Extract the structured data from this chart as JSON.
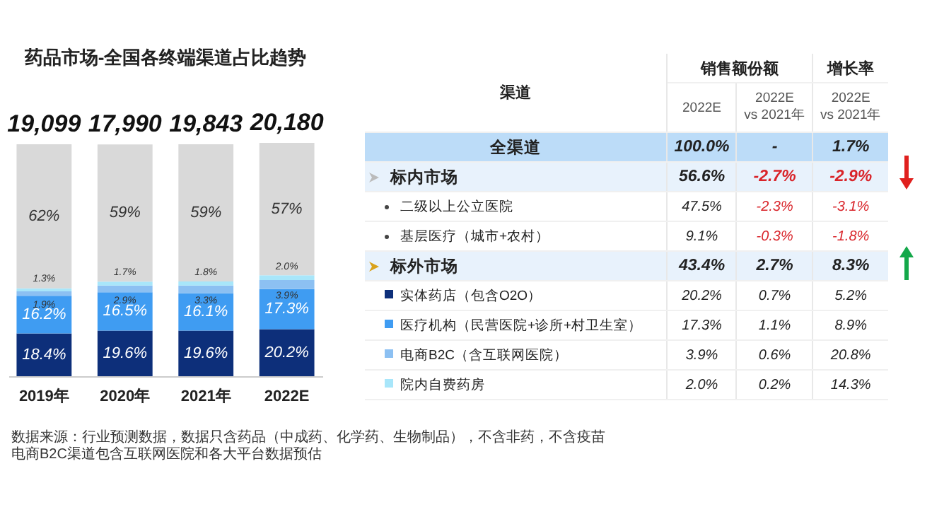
{
  "chart_data": [
    {
      "type": "bar",
      "title": "药品市场-全国各终端渠道占比趋势",
      "categories": [
        "2019年",
        "2020年",
        "2021年",
        "2022E"
      ],
      "stacked": true,
      "data_labels": true,
      "series": [
        {
          "color": "#0d2f7a",
          "values": [
            18.4,
            19.6,
            19.6,
            20.2
          ],
          "value_labels": [
            "18.4%",
            "19.6%",
            "19.6%",
            "20.2%"
          ]
        },
        {
          "color": "#3f9cf2",
          "values": [
            16.2,
            16.5,
            16.1,
            17.3
          ],
          "value_labels": [
            "16.2%",
            "16.5%",
            "16.1%",
            "17.3%"
          ]
        },
        {
          "color": "#8cc0f2",
          "values": [
            1.9,
            2.9,
            3.3,
            3.9
          ],
          "value_labels": [
            "1.9%",
            "2.9%",
            "3.3%",
            "3.9%"
          ]
        },
        {
          "color": "#a8e6fa",
          "values": [
            1.3,
            1.7,
            1.8,
            2.0
          ],
          "value_labels": [
            "1.3%",
            "1.7%",
            "1.8%",
            "2.0%"
          ]
        },
        {
          "color": "#d9d9d9",
          "values": [
            62,
            59,
            59,
            57
          ],
          "value_labels": [
            "62%",
            "59%",
            "59%",
            "57%"
          ]
        }
      ],
      "annotations": [
        "19,099",
        "17,990",
        "19,843",
        "20,180",
        "数据来源：行业预测数据，数据只含药品（中成药、化学药、生物制品），不含非药，不含疫苗",
        "电商B2C渠道包含互联网医院和各大平台数据预估"
      ]
    },
    {
      "type": "other",
      "annotations": [
        "渠道",
        "销售额份额",
        "增长率",
        "2022E",
        "2022E\nvs 2021年",
        "2022E\nvs 2021年",
        "全渠道",
        "100.0%",
        "-",
        "1.7%",
        "标内市场",
        "56.6%",
        "-2.7%",
        "-2.9%",
        "二级以上公立医院",
        "47.5%",
        "-2.3%",
        "-3.1%",
        "基层医疗（城市+农村）",
        "9.1%",
        "-0.3%",
        "-1.8%",
        "标外市场",
        "43.4%",
        "2.7%",
        "8.3%",
        "实体药店（包含O2O）",
        "20.2%",
        "0.7%",
        "5.2%",
        "医疗机构（民营医院+诊所+村卫生室）",
        "17.3%",
        "1.1%",
        "8.9%",
        "电商B2C（含互联网医院）",
        "3.9%",
        "0.6%",
        "20.8%",
        "院内自费药房",
        "2.0%",
        "0.2%",
        "14.3%"
      ]
    }
  ]
}
